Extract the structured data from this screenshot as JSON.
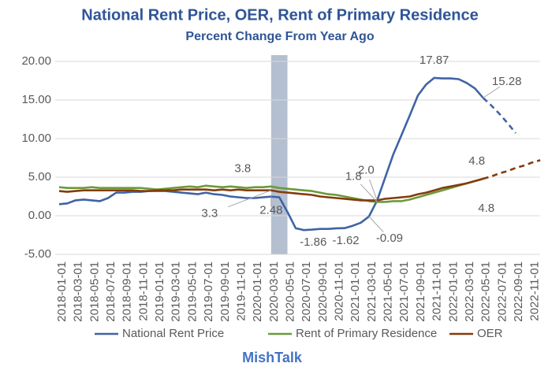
{
  "chart_data": {
    "type": "line",
    "title": "National Rent Price, OER, Rent of Primary Residence",
    "subtitle": "Percent Change From Year Ago",
    "footer": "MishTalk",
    "categories": [
      "2018-01-01",
      null,
      "2018-03-01",
      null,
      "2018-05-01",
      null,
      "2018-07-01",
      null,
      "2018-09-01",
      null,
      "2018-11-01",
      null,
      "2019-01-01",
      null,
      "2019-03-01",
      null,
      "2019-05-01",
      null,
      "2019-07-01",
      null,
      "2019-09-01",
      null,
      "2019-11-01",
      null,
      "2020-01-01",
      null,
      "2020-03-01",
      null,
      "2020-05-01",
      null,
      "2020-07-01",
      null,
      "2020-09-01",
      null,
      "2020-11-01",
      null,
      "2021-01-01",
      null,
      "2021-03-01",
      null,
      "2021-05-01",
      null,
      "2021-07-01",
      null,
      "2021-09-01",
      null,
      "2021-11-01",
      null,
      "2022-01-01",
      null,
      "2022-03-01",
      null,
      "2022-05-01",
      null,
      "2022-07-01",
      null,
      "2022-09-01",
      null,
      "2022-11-01",
      null
    ],
    "ylim": [
      -5,
      20
    ],
    "yticks": [
      {
        "value": -5,
        "label": "-5.00"
      },
      {
        "value": 0,
        "label": "0.00"
      },
      {
        "value": 5,
        "label": "5.00"
      },
      {
        "value": 10,
        "label": "10.00"
      },
      {
        "value": 15,
        "label": "15.00"
      },
      {
        "value": 20,
        "label": "20.00"
      }
    ],
    "grid": true,
    "legend": "bottom",
    "shaded_periods": [
      {
        "start": "2020-03-01",
        "end": "2020-05-01",
        "color": "#b4bfd0"
      }
    ],
    "series": [
      {
        "name": "National Rent Price",
        "color": "#3f63a5",
        "values": [
          1.5,
          1.6,
          2.0,
          2.1,
          2.0,
          1.9,
          2.3,
          3.0,
          3.0,
          3.1,
          3.1,
          3.2,
          3.2,
          3.2,
          3.1,
          3.0,
          2.9,
          2.8,
          3.0,
          2.8,
          2.7,
          2.5,
          2.4,
          2.3,
          2.3,
          2.4,
          2.48,
          2.4,
          0.5,
          -1.6,
          -1.86,
          -1.8,
          -1.7,
          -1.7,
          -1.62,
          -1.6,
          -1.3,
          -0.9,
          -0.09,
          2.0,
          5.0,
          8.0,
          10.5,
          13.0,
          15.6,
          17.0,
          17.87,
          17.8,
          17.8,
          17.7,
          17.2,
          16.5,
          15.28,
          null,
          null,
          null,
          null,
          null,
          null,
          null
        ],
        "projected_values": [
          null,
          null,
          null,
          null,
          null,
          null,
          null,
          null,
          null,
          null,
          null,
          null,
          null,
          null,
          null,
          null,
          null,
          null,
          null,
          null,
          null,
          null,
          null,
          null,
          null,
          null,
          null,
          null,
          null,
          null,
          null,
          null,
          null,
          null,
          null,
          null,
          null,
          null,
          null,
          null,
          null,
          null,
          null,
          null,
          null,
          null,
          null,
          null,
          null,
          null,
          null,
          null,
          15.28,
          14.3,
          13.2,
          12.0,
          10.7,
          null,
          null,
          null
        ],
        "value_labels": [
          null,
          null,
          null,
          null,
          null,
          null,
          null,
          null,
          null,
          null,
          null,
          null,
          null,
          null,
          null,
          null,
          null,
          null,
          null,
          null,
          null,
          null,
          null,
          null,
          null,
          null,
          "2.48",
          null,
          null,
          null,
          "-1.86",
          null,
          null,
          null,
          "-1.62",
          null,
          null,
          null,
          "-0.09",
          "2.0",
          null,
          null,
          null,
          null,
          null,
          null,
          "17.87",
          null,
          null,
          null,
          null,
          null,
          "15.28",
          null,
          null,
          null,
          null,
          null,
          null,
          null
        ]
      },
      {
        "name": "Rent of Primary Residence",
        "color": "#6b9a3a",
        "values": [
          3.7,
          3.6,
          3.6,
          3.6,
          3.7,
          3.6,
          3.6,
          3.6,
          3.6,
          3.6,
          3.6,
          3.5,
          3.4,
          3.5,
          3.6,
          3.7,
          3.8,
          3.7,
          3.9,
          3.8,
          3.7,
          3.8,
          3.7,
          3.6,
          3.7,
          3.7,
          3.8,
          3.6,
          3.5,
          3.4,
          3.3,
          3.2,
          3.0,
          2.8,
          2.7,
          2.5,
          2.3,
          2.1,
          1.9,
          1.8,
          1.8,
          1.9,
          1.9,
          2.1,
          2.4,
          2.7,
          3.0,
          3.3,
          3.6,
          3.9,
          4.2,
          4.5,
          4.8,
          null,
          null,
          null,
          null,
          null,
          null,
          null
        ],
        "value_labels": [
          null,
          null,
          null,
          null,
          null,
          null,
          null,
          null,
          null,
          null,
          null,
          null,
          null,
          null,
          null,
          null,
          null,
          null,
          null,
          null,
          null,
          null,
          null,
          null,
          null,
          null,
          "3.8",
          null,
          null,
          null,
          null,
          null,
          null,
          null,
          null,
          null,
          null,
          null,
          null,
          "1.8",
          null,
          null,
          null,
          null,
          null,
          null,
          null,
          null,
          null,
          null,
          null,
          null,
          "4.8",
          null,
          null,
          null,
          null,
          null,
          null,
          null
        ]
      },
      {
        "name": "OER",
        "color": "#843c0c",
        "values": [
          3.2,
          3.1,
          3.2,
          3.3,
          3.3,
          3.3,
          3.3,
          3.3,
          3.3,
          3.3,
          3.2,
          3.2,
          3.3,
          3.3,
          3.3,
          3.4,
          3.4,
          3.4,
          3.4,
          3.3,
          3.4,
          3.3,
          3.4,
          3.3,
          3.3,
          3.3,
          3.3,
          3.1,
          3.0,
          2.9,
          2.8,
          2.7,
          2.5,
          2.4,
          2.3,
          2.2,
          2.1,
          2.0,
          2.0,
          2.0,
          2.2,
          2.3,
          2.4,
          2.5,
          2.8,
          3.0,
          3.3,
          3.6,
          3.8,
          4.0,
          4.2,
          4.5,
          4.8,
          null,
          null,
          null,
          null,
          null,
          null,
          null
        ],
        "projected_values": [
          null,
          null,
          null,
          null,
          null,
          null,
          null,
          null,
          null,
          null,
          null,
          null,
          null,
          null,
          null,
          null,
          null,
          null,
          null,
          null,
          null,
          null,
          null,
          null,
          null,
          null,
          null,
          null,
          null,
          null,
          null,
          null,
          null,
          null,
          null,
          null,
          null,
          null,
          null,
          null,
          null,
          null,
          null,
          null,
          null,
          null,
          null,
          null,
          null,
          null,
          null,
          null,
          4.8,
          5.1,
          5.5,
          5.8,
          6.2,
          6.5,
          6.9,
          7.2
        ],
        "value_labels": [
          null,
          null,
          null,
          null,
          null,
          null,
          null,
          null,
          null,
          null,
          null,
          null,
          null,
          null,
          null,
          null,
          null,
          null,
          null,
          null,
          null,
          null,
          null,
          null,
          null,
          null,
          "3.3",
          null,
          null,
          null,
          null,
          null,
          null,
          null,
          null,
          null,
          null,
          null,
          null,
          null,
          null,
          null,
          null,
          null,
          null,
          null,
          null,
          null,
          null,
          null,
          null,
          null,
          "4.8",
          null,
          null,
          null,
          null,
          null,
          null,
          null
        ]
      }
    ]
  }
}
